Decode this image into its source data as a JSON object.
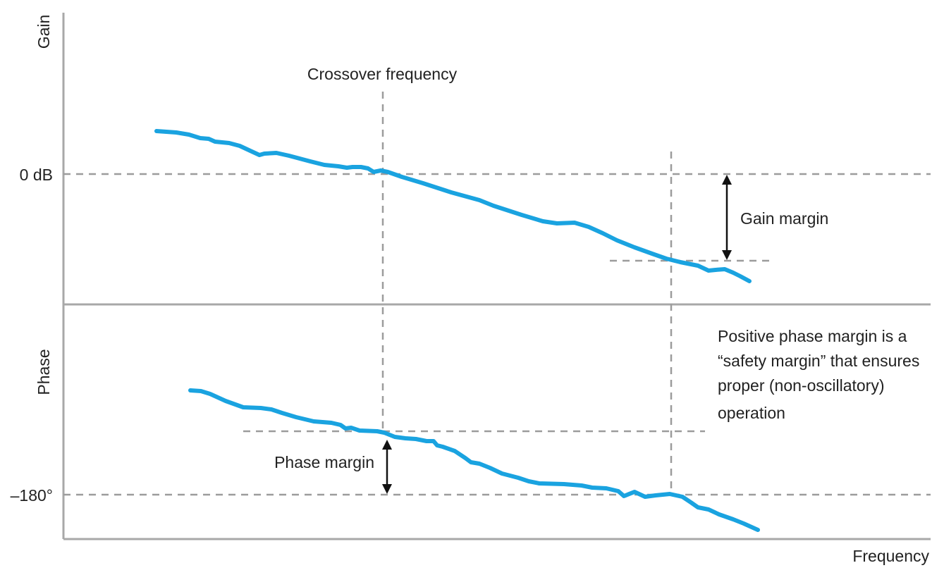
{
  "labels": {
    "gain_axis": "Gain",
    "phase_axis": "Phase",
    "frequency_axis": "Frequency",
    "zero_db": "0 dB",
    "minus_180": "–180°",
    "crossover": "Crossover frequency",
    "gain_margin": "Gain margin",
    "phase_margin": "Phase margin",
    "note_lines": [
      "Positive phase margin is a",
      "“safety margin” that ensures",
      "proper (non-oscillatory)",
      "operation"
    ]
  },
  "colors": {
    "curve": "#1aa3e0",
    "axis": "#a8a8a8",
    "dashed": "#9c9c9c",
    "arrow": "#111111",
    "text": "#222222"
  }
}
